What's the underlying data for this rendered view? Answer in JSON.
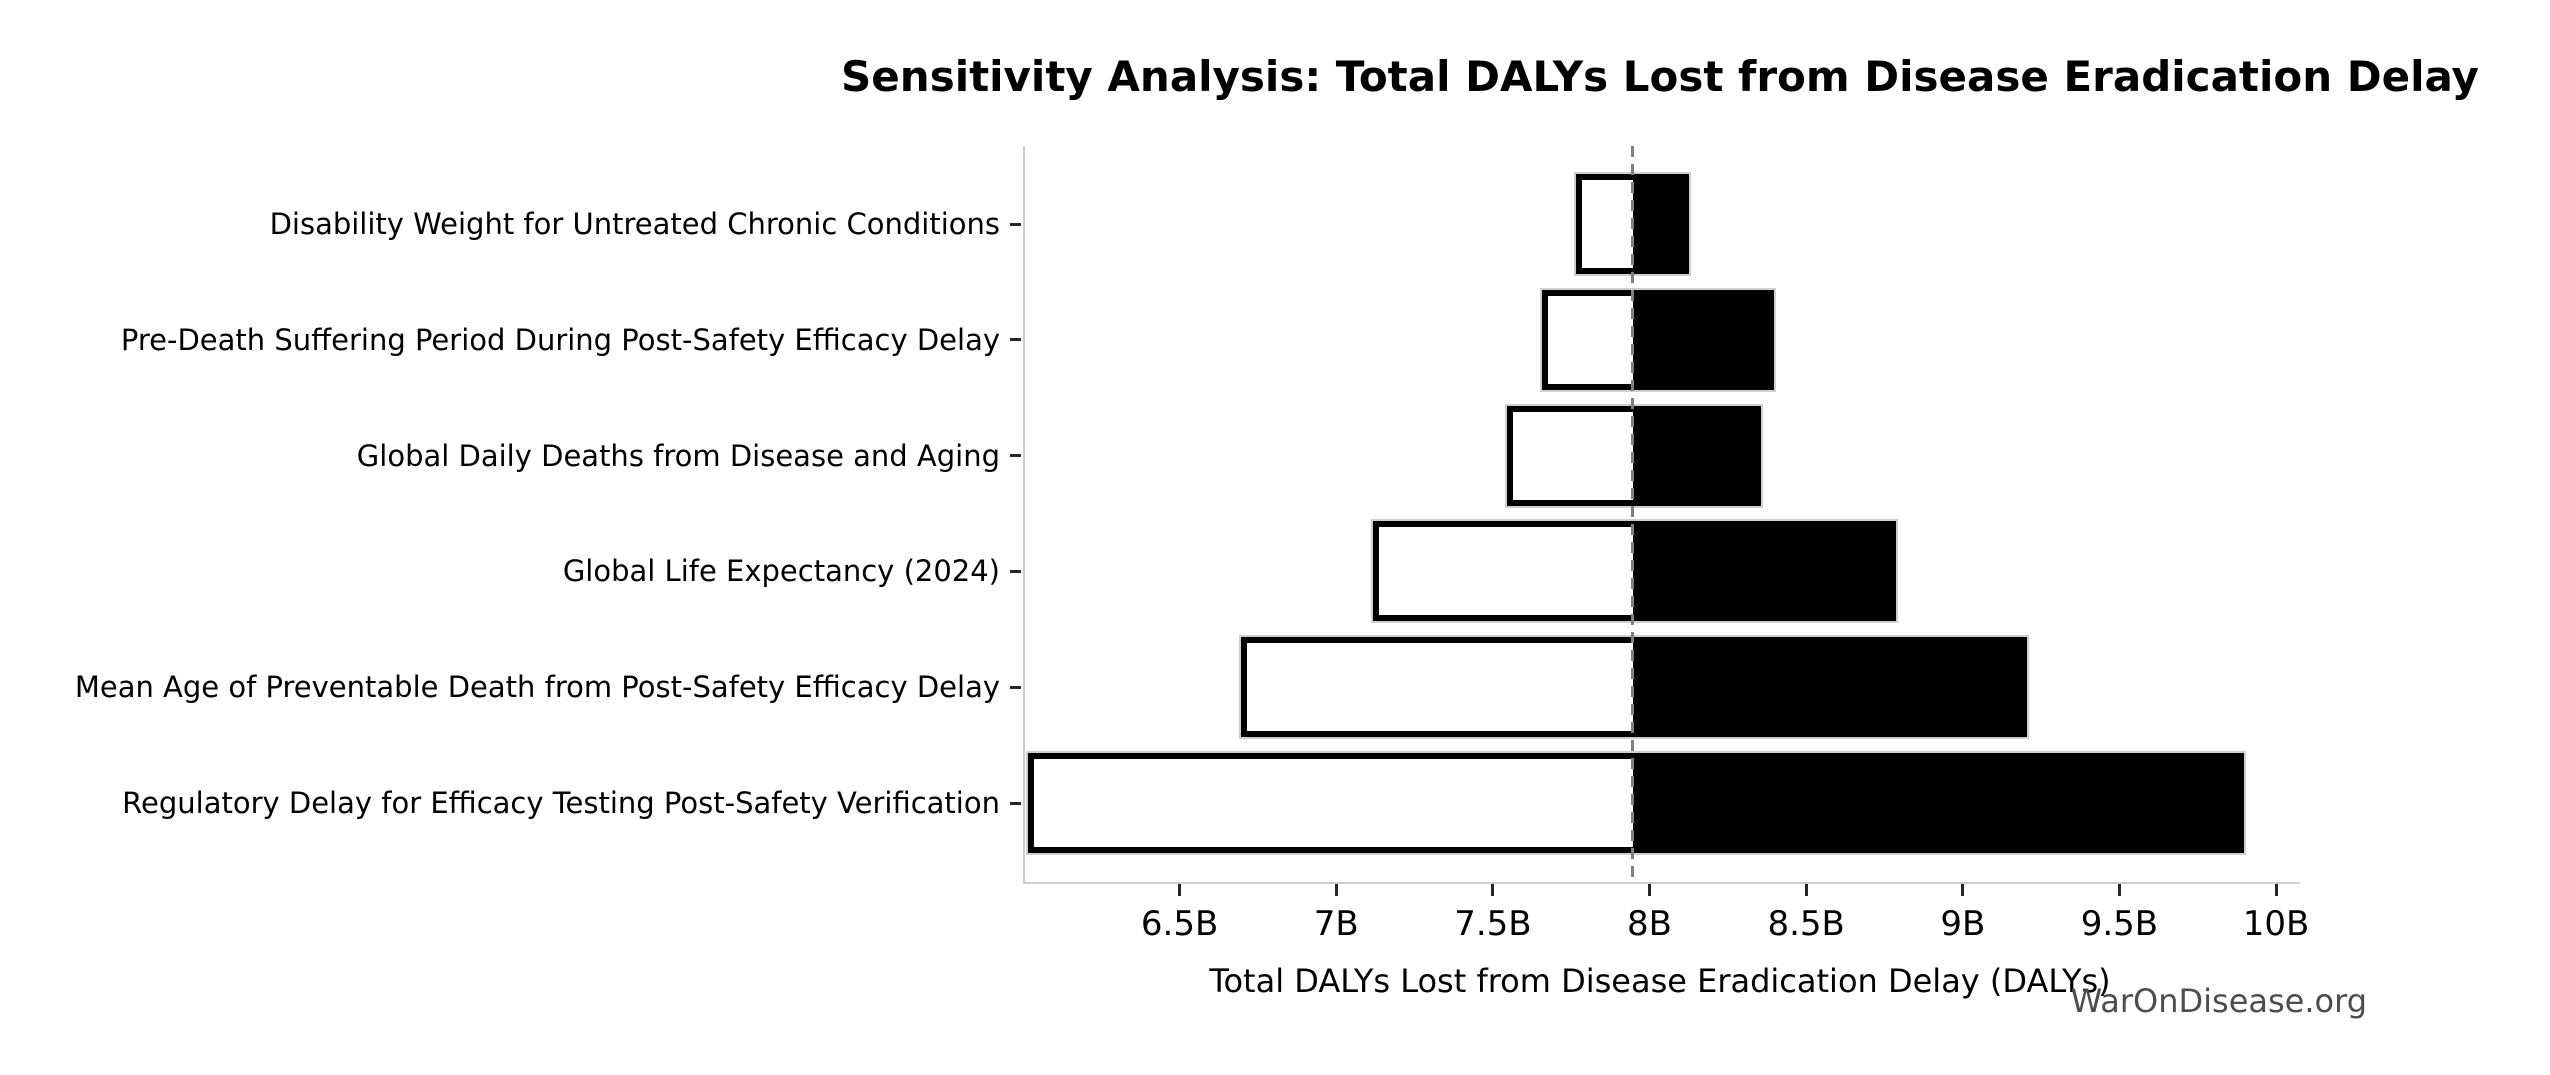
{
  "page": {
    "background": "#ffffff"
  },
  "chart_data": {
    "type": "bar",
    "variant": "tornado-sensitivity",
    "title": "Sensitivity Analysis: Total DALYs Lost from Disease Eradication Delay",
    "xlabel": "Total DALYs Lost from Disease Eradication Delay (DALYs)",
    "ylabel": "",
    "watermark": "WarOnDisease.org",
    "unit": "billions of DALYs",
    "grid": false,
    "legend": null,
    "xlim": [
      6.0,
      10.07
    ],
    "baseline": 7.94,
    "xticks": [
      6.5,
      7.0,
      7.5,
      8.0,
      8.5,
      9.0,
      9.5,
      10.0
    ],
    "xtick_labels": [
      "6.5B",
      "7B",
      "7.5B",
      "8B",
      "8.5B",
      "9B",
      "9.5B",
      "10B"
    ],
    "categories": [
      "Disability Weight for Untreated Chronic Conditions",
      "Pre-Death Suffering Period During Post-Safety Efficacy Delay",
      "Global Daily Deaths from Disease and Aging",
      "Global Life Expectancy (2024)",
      "Mean Age of Preventable Death from Post-Safety Efficacy Delay",
      "Regulatory Delay for Efficacy Testing Post-Safety Verification"
    ],
    "series": [
      {
        "name": "low",
        "values": [
          7.76,
          7.65,
          7.54,
          7.11,
          6.69,
          6.01
        ]
      },
      {
        "name": "high",
        "values": [
          8.12,
          8.39,
          8.35,
          8.78,
          9.2,
          9.89
        ]
      }
    ],
    "rows": [
      {
        "label": "Disability Weight for Untreated Chronic Conditions",
        "low": 7.76,
        "high": 8.12
      },
      {
        "label": "Pre-Death Suffering Period During Post-Safety Efficacy Delay",
        "low": 7.65,
        "high": 8.39
      },
      {
        "label": "Global Daily Deaths from Disease and Aging",
        "low": 7.54,
        "high": 8.35
      },
      {
        "label": "Global Life Expectancy (2024)",
        "low": 7.11,
        "high": 8.78
      },
      {
        "label": "Mean Age of Preventable Death from Post-Safety Efficacy Delay",
        "low": 6.69,
        "high": 9.2
      },
      {
        "label": "Regulatory Delay for Efficacy Testing Post-Safety Verification",
        "low": 6.01,
        "high": 9.89
      }
    ],
    "colors": {
      "bar_high_fill": "#000000",
      "bar_low_fill": "#ffffff",
      "bar_low_edge": "#000000",
      "bar_outer_edge": "#cfcfcf",
      "baseline_line": "#7f7f7f",
      "spine": "#cccccc",
      "tick": "#262626",
      "text": "#000000",
      "watermark": "#4d4d4d",
      "background": "#ffffff"
    }
  }
}
